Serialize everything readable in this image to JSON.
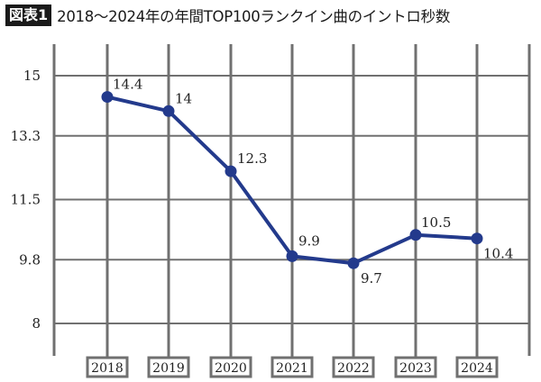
{
  "header": {
    "badge": "図表1",
    "title": "2018～2024年の年間TOP100ランクイン曲のイントロ秒数"
  },
  "colors": {
    "line": "#233a8c",
    "grid": "#707070",
    "badge_bg": "#1a1a1a"
  },
  "chart_data": {
    "type": "line",
    "title": "2018～2024年の年間TOP100ランクイン曲のイントロ秒数",
    "categories": [
      "2018",
      "2019",
      "2020",
      "2021",
      "2022",
      "2023",
      "2024"
    ],
    "series": [
      {
        "name": "イントロ秒数",
        "values": [
          14.4,
          14,
          12.3,
          9.9,
          9.7,
          10.5,
          10.4
        ]
      }
    ],
    "data_labels": [
      "14.4",
      "14",
      "12.3",
      "9.9",
      "9.7",
      "10.5",
      "10.4"
    ],
    "yticks": [
      "15",
      "13.3",
      "11.5",
      "9.8",
      "8"
    ],
    "ytick_values": [
      15,
      13.3,
      11.5,
      9.8,
      8
    ],
    "xlabel": "",
    "ylabel": "",
    "ylim": [
      8,
      15
    ],
    "grid": true,
    "legend": "none"
  }
}
